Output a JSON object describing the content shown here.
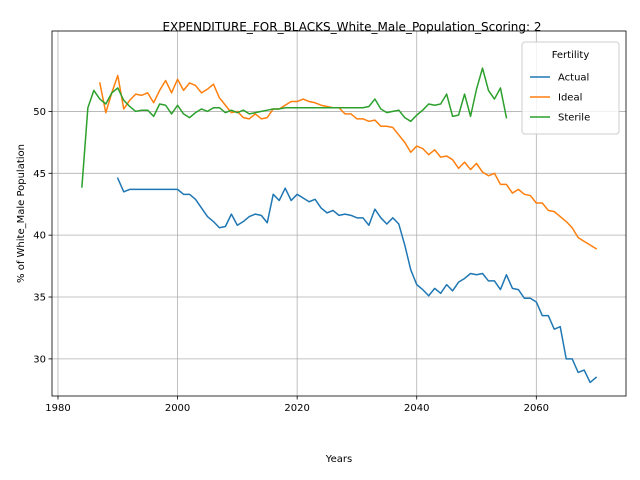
{
  "chart_data": {
    "type": "line",
    "title": "EXPENDITURE_FOR_BLACKS_White_Male_Population_Scoring: 2",
    "xlabel": "Years",
    "ylabel": "% of White_Male Population",
    "xlim": [
      1979,
      2075
    ],
    "ylim": [
      27,
      56.5
    ],
    "xticks": [
      1980,
      2000,
      2020,
      2040,
      2060
    ],
    "yticks": [
      30,
      35,
      40,
      45,
      50
    ],
    "grid": true,
    "legend": {
      "title": "Fertility",
      "position": "top-right"
    },
    "series": [
      {
        "name": "Actual",
        "color": "#1f77b4",
        "x": [
          1990,
          1991,
          1992,
          1993,
          1994,
          1995,
          1996,
          1997,
          1998,
          1999,
          2000,
          2001,
          2002,
          2003,
          2004,
          2005,
          2006,
          2007,
          2008,
          2009,
          2010,
          2011,
          2012,
          2013,
          2014,
          2015,
          2016,
          2017,
          2018,
          2019,
          2020,
          2021,
          2022,
          2023,
          2024,
          2025,
          2026,
          2027,
          2028,
          2029,
          2030,
          2031,
          2032,
          2033,
          2034,
          2035,
          2036,
          2037,
          2038,
          2039,
          2040,
          2041,
          2042,
          2043,
          2044,
          2045,
          2046,
          2047,
          2048,
          2049,
          2050,
          2051,
          2052,
          2053,
          2054,
          2055,
          2056,
          2057,
          2058,
          2059,
          2060,
          2061,
          2062,
          2063,
          2064,
          2065,
          2066,
          2067,
          2068,
          2069,
          2070
        ],
        "y": [
          44.6,
          43.5,
          43.7,
          43.7,
          43.7,
          43.7,
          43.7,
          43.7,
          43.7,
          43.7,
          43.7,
          43.3,
          43.3,
          42.9,
          42.2,
          41.5,
          41.1,
          40.6,
          40.7,
          41.7,
          40.8,
          41.1,
          41.5,
          41.7,
          41.6,
          41.0,
          43.3,
          42.8,
          43.8,
          42.8,
          43.3,
          43.0,
          42.7,
          42.9,
          42.2,
          41.8,
          42.0,
          41.6,
          41.7,
          41.6,
          41.4,
          41.4,
          40.8,
          42.1,
          41.4,
          40.9,
          41.4,
          40.9,
          39.2,
          37.2,
          36.0,
          35.6,
          35.1,
          35.7,
          35.3,
          36.0,
          35.5,
          36.2,
          36.5,
          36.9,
          36.8,
          36.9,
          36.3,
          36.3,
          35.6,
          36.8,
          35.7,
          35.6,
          34.9,
          34.9,
          34.6,
          33.5,
          33.5,
          32.4,
          32.6,
          30.0,
          30.0,
          28.9,
          29.1,
          28.1,
          28.5
        ]
      },
      {
        "name": "Ideal",
        "color": "#ff7f0e",
        "x": [
          1987,
          1988,
          1989,
          1990,
          1991,
          1992,
          1993,
          1994,
          1995,
          1996,
          1997,
          1998,
          1999,
          2000,
          2001,
          2002,
          2003,
          2004,
          2005,
          2006,
          2007,
          2008,
          2009,
          2010,
          2011,
          2012,
          2013,
          2014,
          2015,
          2016,
          2017,
          2018,
          2019,
          2020,
          2021,
          2022,
          2023,
          2024,
          2025,
          2026,
          2027,
          2028,
          2029,
          2030,
          2031,
          2032,
          2033,
          2034,
          2035,
          2036,
          2037,
          2038,
          2039,
          2040,
          2041,
          2042,
          2043,
          2044,
          2045,
          2046,
          2047,
          2048,
          2049,
          2050,
          2051,
          2052,
          2053,
          2054,
          2055,
          2056,
          2057,
          2058,
          2059,
          2060,
          2061,
          2062,
          2063,
          2064,
          2065,
          2066,
          2067,
          2068,
          2069,
          2070
        ],
        "y": [
          52.3,
          49.9,
          51.5,
          52.9,
          50.2,
          50.9,
          51.4,
          51.3,
          51.5,
          50.7,
          51.7,
          52.5,
          51.5,
          52.6,
          51.7,
          52.3,
          52.1,
          51.5,
          51.8,
          52.2,
          51.1,
          50.5,
          49.9,
          50.0,
          49.5,
          49.4,
          49.8,
          49.4,
          49.5,
          50.2,
          50.2,
          50.5,
          50.8,
          50.8,
          51.0,
          50.8,
          50.7,
          50.5,
          50.4,
          50.3,
          50.3,
          49.8,
          49.8,
          49.4,
          49.4,
          49.2,
          49.3,
          48.8,
          48.8,
          48.7,
          48.1,
          47.5,
          46.7,
          47.2,
          47.0,
          46.5,
          46.9,
          46.3,
          46.4,
          46.1,
          45.4,
          45.9,
          45.3,
          45.8,
          45.1,
          44.8,
          45.0,
          44.1,
          44.1,
          43.4,
          43.7,
          43.3,
          43.2,
          42.6,
          42.6,
          42.0,
          41.9,
          41.5,
          41.1,
          40.6,
          39.8,
          39.5,
          39.2,
          38.9
        ]
      },
      {
        "name": "Sterile",
        "color": "#2ca02c",
        "x": [
          1984,
          1985,
          1986,
          1987,
          1988,
          1989,
          1990,
          1991,
          1992,
          1993,
          1994,
          1995,
          1996,
          1997,
          1998,
          1999,
          2000,
          2001,
          2002,
          2003,
          2004,
          2005,
          2006,
          2007,
          2008,
          2009,
          2010,
          2011,
          2012,
          2013,
          2014,
          2015,
          2016,
          2017,
          2018,
          2019,
          2020,
          2021,
          2022,
          2023,
          2024,
          2025,
          2026,
          2027,
          2028,
          2029,
          2030,
          2031,
          2032,
          2033,
          2034,
          2035,
          2036,
          2037,
          2038,
          2039,
          2040,
          2041,
          2042,
          2043,
          2044,
          2045,
          2046,
          2047,
          2048,
          2049,
          2050,
          2051,
          2052,
          2053,
          2054,
          2055
        ],
        "y": [
          43.9,
          50.3,
          51.7,
          51.0,
          50.6,
          51.5,
          51.9,
          50.9,
          50.4,
          50.0,
          50.1,
          50.1,
          49.6,
          50.6,
          50.5,
          49.8,
          50.5,
          49.8,
          49.5,
          49.9,
          50.2,
          50.0,
          50.3,
          50.3,
          49.9,
          50.1,
          49.9,
          50.1,
          49.8,
          49.9,
          50.0,
          50.1,
          50.2,
          50.2,
          50.3,
          50.3,
          50.3,
          50.3,
          50.3,
          50.3,
          50.3,
          50.3,
          50.3,
          50.3,
          50.3,
          50.3,
          50.3,
          50.3,
          50.4,
          51.0,
          50.2,
          49.9,
          50.0,
          50.1,
          49.5,
          49.2,
          49.7,
          50.1,
          50.6,
          50.5,
          50.6,
          51.4,
          49.6,
          49.7,
          51.4,
          49.6,
          51.8,
          53.5,
          51.7,
          51.0,
          51.9,
          49.5
        ]
      }
    ]
  }
}
